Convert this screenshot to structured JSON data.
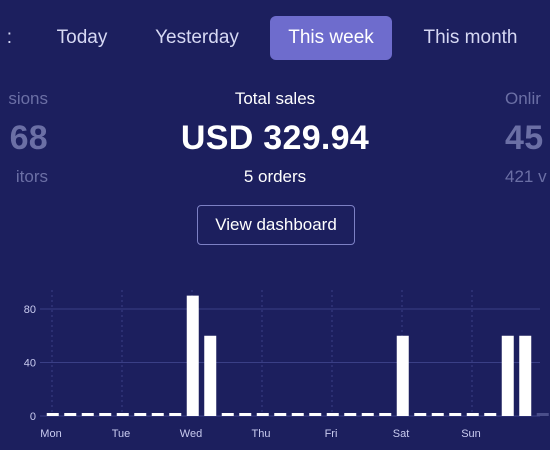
{
  "tabs": [
    {
      "label": ":",
      "active": false
    },
    {
      "label": "Today",
      "active": false
    },
    {
      "label": "Yesterday",
      "active": false
    },
    {
      "label": "This week",
      "active": true
    },
    {
      "label": "This month",
      "active": false
    }
  ],
  "stats": {
    "left": {
      "label": "sions",
      "value": "68",
      "sub": "itors"
    },
    "center": {
      "label": "Total sales",
      "value": "USD 329.94",
      "sub": "5 orders"
    },
    "right": {
      "label": "Onlir",
      "value": "45",
      "sub": "421 v"
    }
  },
  "view_dashboard_label": "View dashboard",
  "colors": {
    "background": "#1c1f5e",
    "active_tab": "#6e6ccd",
    "bar": "#ffffff",
    "faded_bar": "#4a4e8a",
    "grid": "#3a3f86"
  },
  "chart_data": {
    "type": "bar",
    "ylim": [
      0,
      100
    ],
    "yticks": [
      0,
      40,
      80
    ],
    "x_labels": [
      "Mon",
      "Tue",
      "Wed",
      "Thu",
      "Fri",
      "Sat",
      "Sun"
    ],
    "bins_per_day": 4,
    "values": [
      0,
      0,
      0,
      0,
      0,
      0,
      0,
      0,
      90,
      60,
      0,
      0,
      0,
      0,
      0,
      0,
      0,
      0,
      0,
      0,
      60,
      0,
      0,
      0,
      0,
      0,
      60,
      60,
      0,
      0,
      0
    ],
    "faded_from_index": 28,
    "title": "",
    "xlabel": "",
    "ylabel": ""
  }
}
